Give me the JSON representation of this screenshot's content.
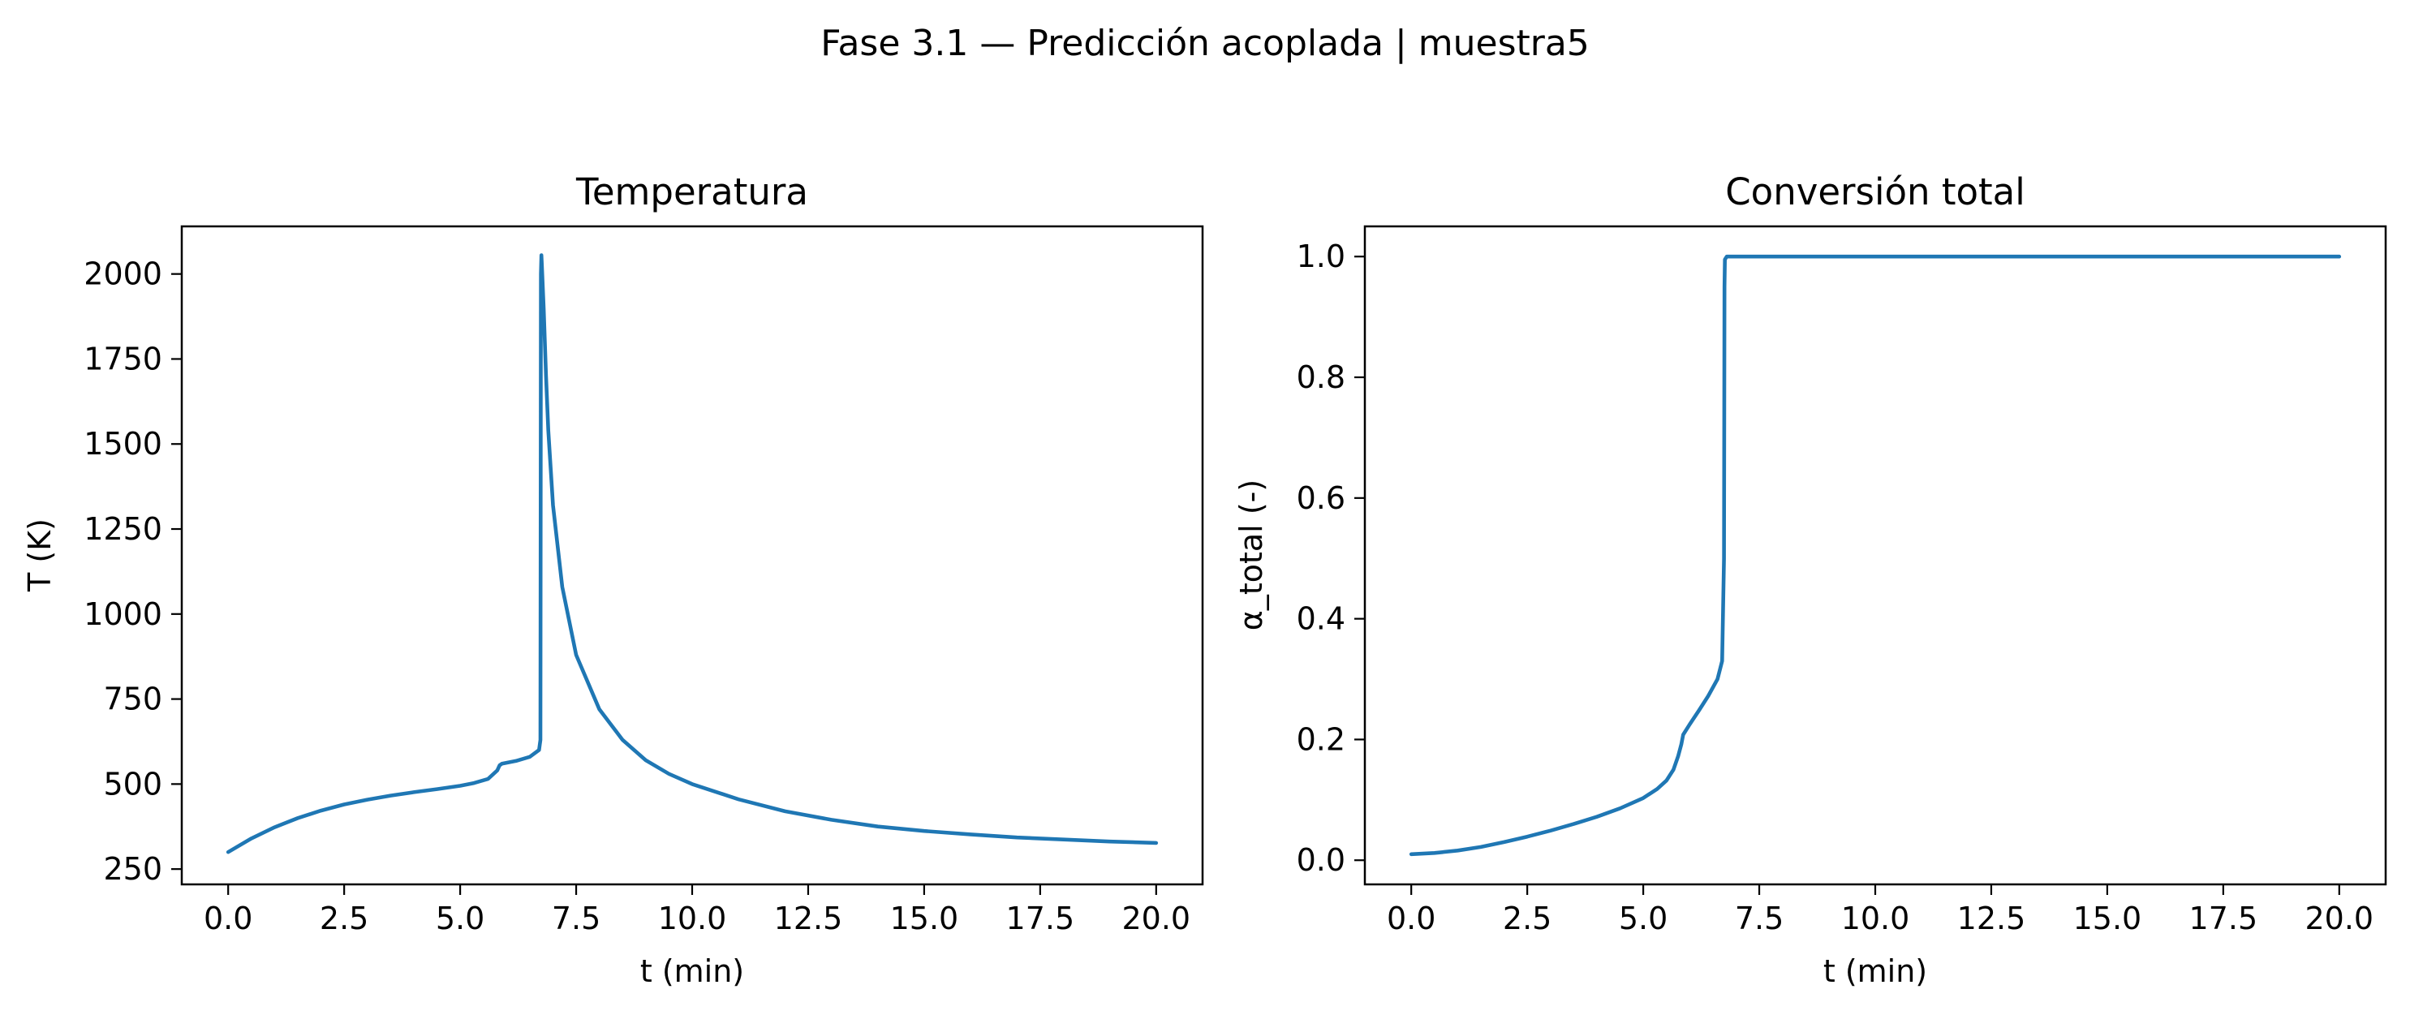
{
  "suptitle": "Fase 3.1 — Predicción acoplada | muestra5",
  "line_color": "#1f77b4",
  "chart_data": [
    {
      "type": "line",
      "title": "Temperatura",
      "xlabel": "t (min)",
      "ylabel": "T (K)",
      "xlim": [
        -1.0,
        21.0
      ],
      "ylim": [
        205,
        2140
      ],
      "xticks": [
        0.0,
        2.5,
        5.0,
        7.5,
        10.0,
        12.5,
        15.0,
        17.5,
        20.0
      ],
      "xtick_labels": [
        "0.0",
        "2.5",
        "5.0",
        "7.5",
        "10.0",
        "12.5",
        "15.0",
        "17.5",
        "20.0"
      ],
      "yticks": [
        250,
        500,
        750,
        1000,
        1250,
        1500,
        1750,
        2000
      ],
      "ytick_labels": [
        "250",
        "500",
        "750",
        "1000",
        "1250",
        "1500",
        "1750",
        "2000"
      ],
      "grid": false,
      "series": [
        {
          "x": [
            0.0,
            0.5,
            1.0,
            1.5,
            2.0,
            2.5,
            3.0,
            3.5,
            4.0,
            4.5,
            5.0,
            5.3,
            5.6,
            5.8,
            5.85,
            5.9,
            6.2,
            6.5,
            6.7,
            6.73,
            6.74,
            6.75,
            6.76,
            6.8,
            6.85,
            6.9,
            7.0,
            7.2,
            7.5,
            8.0,
            8.5,
            9.0,
            9.5,
            10.0,
            11.0,
            12.0,
            13.0,
            14.0,
            15.0,
            16.0,
            17.0,
            18.0,
            19.0,
            20.0
          ],
          "y": [
            300,
            340,
            373,
            400,
            422,
            440,
            454,
            466,
            476,
            485,
            495,
            503,
            515,
            540,
            555,
            560,
            568,
            580,
            600,
            630,
            2000,
            2055,
            2030,
            1900,
            1700,
            1540,
            1320,
            1080,
            880,
            720,
            630,
            570,
            530,
            500,
            455,
            420,
            395,
            375,
            362,
            352,
            343,
            337,
            331,
            327
          ]
        }
      ]
    },
    {
      "type": "line",
      "title": "Conversión total",
      "xlabel": "t (min)",
      "ylabel": "α_total (-)",
      "xlim": [
        -1.0,
        21.0
      ],
      "ylim": [
        -0.04,
        1.05
      ],
      "xticks": [
        0.0,
        2.5,
        5.0,
        7.5,
        10.0,
        12.5,
        15.0,
        17.5,
        20.0
      ],
      "xtick_labels": [
        "0.0",
        "2.5",
        "5.0",
        "7.5",
        "10.0",
        "12.5",
        "15.0",
        "17.5",
        "20.0"
      ],
      "yticks": [
        0.0,
        0.2,
        0.4,
        0.6,
        0.8,
        1.0
      ],
      "ytick_labels": [
        "0.0",
        "0.2",
        "0.4",
        "0.6",
        "0.8",
        "1.0"
      ],
      "grid": false,
      "series": [
        {
          "x": [
            0.0,
            0.5,
            1.0,
            1.5,
            2.0,
            2.5,
            3.0,
            3.5,
            4.0,
            4.5,
            5.0,
            5.3,
            5.5,
            5.65,
            5.75,
            5.82,
            5.86,
            6.0,
            6.2,
            6.4,
            6.6,
            6.7,
            6.74,
            6.75,
            6.76,
            6.8,
            7.0,
            10.0,
            15.0,
            20.0
          ],
          "y": [
            0.01,
            0.012,
            0.016,
            0.022,
            0.03,
            0.039,
            0.049,
            0.06,
            0.072,
            0.086,
            0.103,
            0.118,
            0.132,
            0.15,
            0.172,
            0.192,
            0.208,
            0.225,
            0.248,
            0.272,
            0.3,
            0.33,
            0.5,
            0.95,
            0.995,
            1.0,
            1.0,
            1.0,
            1.0,
            1.0
          ]
        }
      ]
    }
  ]
}
